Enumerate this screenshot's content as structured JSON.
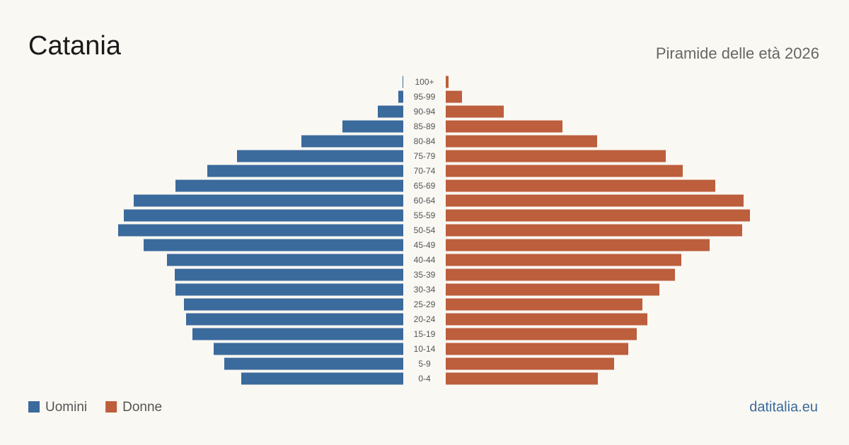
{
  "chart_data": {
    "type": "pyramid",
    "title": "Catania",
    "subtitle": "Piramide delle età 2026",
    "source": "datitalia.eu",
    "categories": [
      "100+",
      "95-99",
      "90-94",
      "85-89",
      "80-84",
      "75-79",
      "70-74",
      "65-69",
      "60-64",
      "55-59",
      "50-54",
      "45-49",
      "40-44",
      "35-39",
      "30-34",
      "25-29",
      "20-24",
      "15-19",
      "10-14",
      "5-9",
      "0-4"
    ],
    "series": [
      {
        "name": "Uomini",
        "color": "#3b6a9c",
        "side": "left",
        "values": [
          1,
          7,
          36,
          86,
          144,
          235,
          277,
          322,
          381,
          395,
          403,
          367,
          334,
          323,
          322,
          310,
          307,
          298,
          268,
          253,
          229
        ]
      },
      {
        "name": "Donne",
        "color": "#bd5e3c",
        "side": "right",
        "values": [
          4,
          23,
          82,
          165,
          214,
          311,
          335,
          381,
          421,
          430,
          419,
          373,
          333,
          324,
          302,
          278,
          285,
          270,
          258,
          238,
          215
        ]
      }
    ]
  }
}
